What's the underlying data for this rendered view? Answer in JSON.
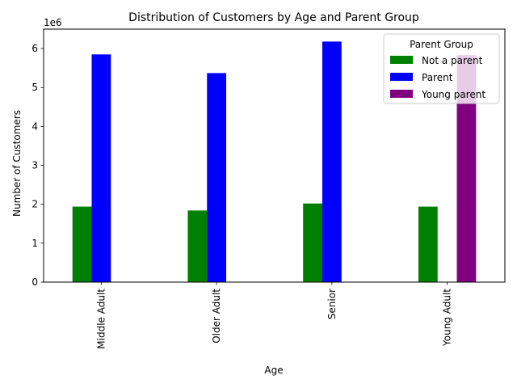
{
  "chart_data": {
    "type": "bar",
    "title": "Distribution of Customers by Age and Parent Group",
    "xlabel": "Age",
    "ylabel": "Number of Customers",
    "y_offset_text": "1e6",
    "categories": [
      "Middle Adult",
      "Older Adult",
      "Senior",
      "Young Adult"
    ],
    "series": [
      {
        "name": "Not a parent",
        "color": "#008000",
        "values": [
          1940000,
          1840000,
          2020000,
          1940000
        ]
      },
      {
        "name": "Parent",
        "color": "#0000ff",
        "values": [
          5850000,
          5370000,
          6180000,
          0
        ]
      },
      {
        "name": "Young parent",
        "color": "#800080",
        "values": [
          0,
          0,
          0,
          5830000
        ]
      }
    ],
    "ylim": [
      0,
      6500000
    ],
    "yticks": [
      0,
      1000000,
      2000000,
      3000000,
      4000000,
      5000000,
      6000000
    ],
    "ytick_labels": [
      "0",
      "1",
      "2",
      "3",
      "4",
      "5",
      "6"
    ],
    "grid": false,
    "legend": {
      "title": "Parent Group",
      "placement": "top-right"
    }
  }
}
